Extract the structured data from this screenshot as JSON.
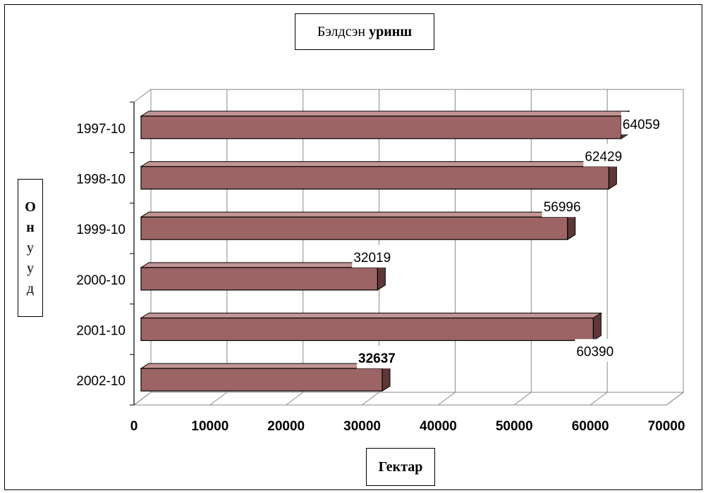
{
  "chart_data": {
    "type": "bar",
    "orientation": "horizontal",
    "title_plain": "Бэлдсэн",
    "title_bold": "уринш",
    "xlabel": "Гектар",
    "ylabel_letters": [
      "О",
      "н",
      "у",
      "у",
      "д"
    ],
    "categories": [
      "1997-10",
      "1998-10",
      "1999-10",
      "2000-10",
      "2001-10",
      "2002-10"
    ],
    "values": [
      64059,
      62429,
      56996,
      32019,
      60390,
      32637
    ],
    "data_labels": [
      "64059",
      "62429",
      "56996",
      "32019",
      "60390",
      "32637"
    ],
    "bold_labels": [
      false,
      false,
      false,
      false,
      false,
      true
    ],
    "xlim": [
      0,
      70000
    ],
    "xticks": [
      "0",
      "10000",
      "20000",
      "30000",
      "40000",
      "50000",
      "60000",
      "70000"
    ],
    "grid": true,
    "bar_color": "#9c6464",
    "bar_top_color": "#c29595",
    "bar_side_color": "#5e3737",
    "legend": "none"
  }
}
